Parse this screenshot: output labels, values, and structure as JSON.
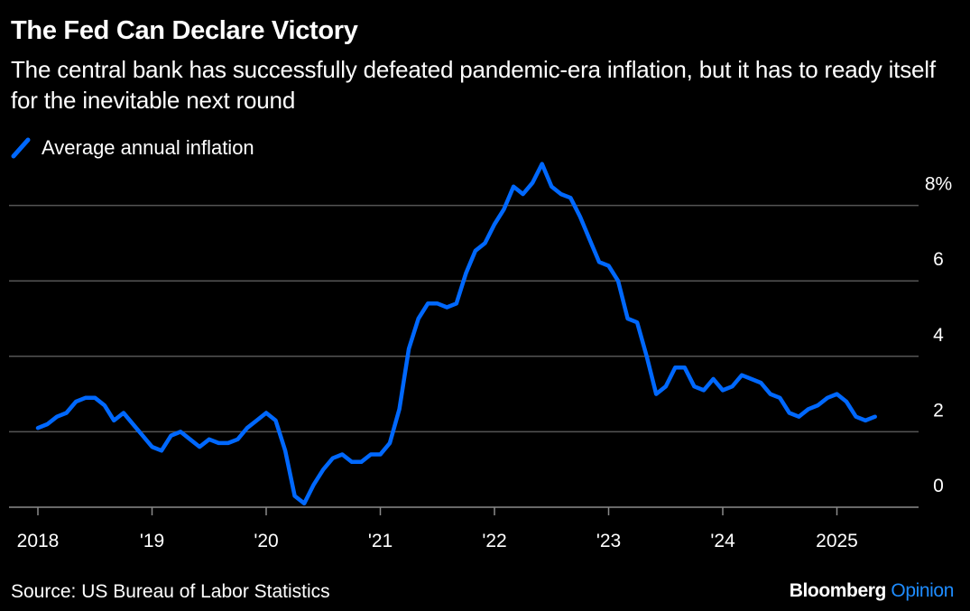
{
  "title": "The Fed Can Declare Victory",
  "subtitle": "The central bank has successfully defeated pandemic-era inflation, but it has to ready itself for the inevitable next round",
  "source": "Source: US Bureau of Labor Statistics",
  "brand": {
    "name": "Bloomberg",
    "section": "Opinion",
    "name_color": "#ffffff",
    "section_color": "#1e8cff"
  },
  "colors": {
    "background": "#000000",
    "line": "#0068ff",
    "grid": "#555555",
    "text": "#ffffff"
  },
  "chart_data": {
    "type": "line",
    "title": "The Fed Can Declare Victory",
    "subtitle": "The central bank has successfully defeated pandemic-era inflation, but it has to ready itself for the inevitable next round",
    "xlabel": "",
    "ylabel": "",
    "legend": "top-left",
    "grid": true,
    "xlim": [
      "2018-01",
      "2025-12"
    ],
    "ylim": [
      0,
      9
    ],
    "yticks": [
      {
        "value": 0,
        "label": "0"
      },
      {
        "value": 2,
        "label": "2"
      },
      {
        "value": 4,
        "label": "4"
      },
      {
        "value": 6,
        "label": "6"
      },
      {
        "value": 8,
        "label": "8%"
      }
    ],
    "xticks": [
      {
        "date": "2018-01",
        "label": "2018"
      },
      {
        "date": "2019-01",
        "label": "'19"
      },
      {
        "date": "2020-01",
        "label": "'20"
      },
      {
        "date": "2021-01",
        "label": "'21"
      },
      {
        "date": "2022-01",
        "label": "'22"
      },
      {
        "date": "2023-01",
        "label": "'23"
      },
      {
        "date": "2024-01",
        "label": "'24"
      },
      {
        "date": "2025-01",
        "label": "2025"
      }
    ],
    "series": [
      {
        "name": "Average annual inflation",
        "points": [
          [
            "2018-01",
            2.1
          ],
          [
            "2018-02",
            2.2
          ],
          [
            "2018-03",
            2.4
          ],
          [
            "2018-04",
            2.5
          ],
          [
            "2018-05",
            2.8
          ],
          [
            "2018-06",
            2.9
          ],
          [
            "2018-07",
            2.9
          ],
          [
            "2018-08",
            2.7
          ],
          [
            "2018-09",
            2.3
          ],
          [
            "2018-10",
            2.5
          ],
          [
            "2018-11",
            2.2
          ],
          [
            "2018-12",
            1.9
          ],
          [
            "2019-01",
            1.6
          ],
          [
            "2019-02",
            1.5
          ],
          [
            "2019-03",
            1.9
          ],
          [
            "2019-04",
            2.0
          ],
          [
            "2019-05",
            1.8
          ],
          [
            "2019-06",
            1.6
          ],
          [
            "2019-07",
            1.8
          ],
          [
            "2019-08",
            1.7
          ],
          [
            "2019-09",
            1.7
          ],
          [
            "2019-10",
            1.8
          ],
          [
            "2019-11",
            2.1
          ],
          [
            "2019-12",
            2.3
          ],
          [
            "2020-01",
            2.5
          ],
          [
            "2020-02",
            2.3
          ],
          [
            "2020-03",
            1.5
          ],
          [
            "2020-04",
            0.3
          ],
          [
            "2020-05",
            0.1
          ],
          [
            "2020-06",
            0.6
          ],
          [
            "2020-07",
            1.0
          ],
          [
            "2020-08",
            1.3
          ],
          [
            "2020-09",
            1.4
          ],
          [
            "2020-10",
            1.2
          ],
          [
            "2020-11",
            1.2
          ],
          [
            "2020-12",
            1.4
          ],
          [
            "2021-01",
            1.4
          ],
          [
            "2021-02",
            1.7
          ],
          [
            "2021-03",
            2.6
          ],
          [
            "2021-04",
            4.2
          ],
          [
            "2021-05",
            5.0
          ],
          [
            "2021-06",
            5.4
          ],
          [
            "2021-07",
            5.4
          ],
          [
            "2021-08",
            5.3
          ],
          [
            "2021-09",
            5.4
          ],
          [
            "2021-10",
            6.2
          ],
          [
            "2021-11",
            6.8
          ],
          [
            "2021-12",
            7.0
          ],
          [
            "2022-01",
            7.5
          ],
          [
            "2022-02",
            7.9
          ],
          [
            "2022-03",
            8.5
          ],
          [
            "2022-04",
            8.3
          ],
          [
            "2022-05",
            8.6
          ],
          [
            "2022-06",
            9.1
          ],
          [
            "2022-07",
            8.5
          ],
          [
            "2022-08",
            8.3
          ],
          [
            "2022-09",
            8.2
          ],
          [
            "2022-10",
            7.7
          ],
          [
            "2022-11",
            7.1
          ],
          [
            "2022-12",
            6.5
          ],
          [
            "2023-01",
            6.4
          ],
          [
            "2023-02",
            6.0
          ],
          [
            "2023-03",
            5.0
          ],
          [
            "2023-04",
            4.9
          ],
          [
            "2023-05",
            4.0
          ],
          [
            "2023-06",
            3.0
          ],
          [
            "2023-07",
            3.2
          ],
          [
            "2023-08",
            3.7
          ],
          [
            "2023-09",
            3.7
          ],
          [
            "2023-10",
            3.2
          ],
          [
            "2023-11",
            3.1
          ],
          [
            "2023-12",
            3.4
          ],
          [
            "2024-01",
            3.1
          ],
          [
            "2024-02",
            3.2
          ],
          [
            "2024-03",
            3.5
          ],
          [
            "2024-04",
            3.4
          ],
          [
            "2024-05",
            3.3
          ],
          [
            "2024-06",
            3.0
          ],
          [
            "2024-07",
            2.9
          ],
          [
            "2024-08",
            2.5
          ],
          [
            "2024-09",
            2.4
          ],
          [
            "2024-10",
            2.6
          ],
          [
            "2024-11",
            2.7
          ],
          [
            "2024-12",
            2.9
          ],
          [
            "2025-01",
            3.0
          ],
          [
            "2025-02",
            2.8
          ],
          [
            "2025-03",
            2.4
          ],
          [
            "2025-04",
            2.3
          ],
          [
            "2025-05",
            2.4
          ]
        ]
      }
    ]
  }
}
